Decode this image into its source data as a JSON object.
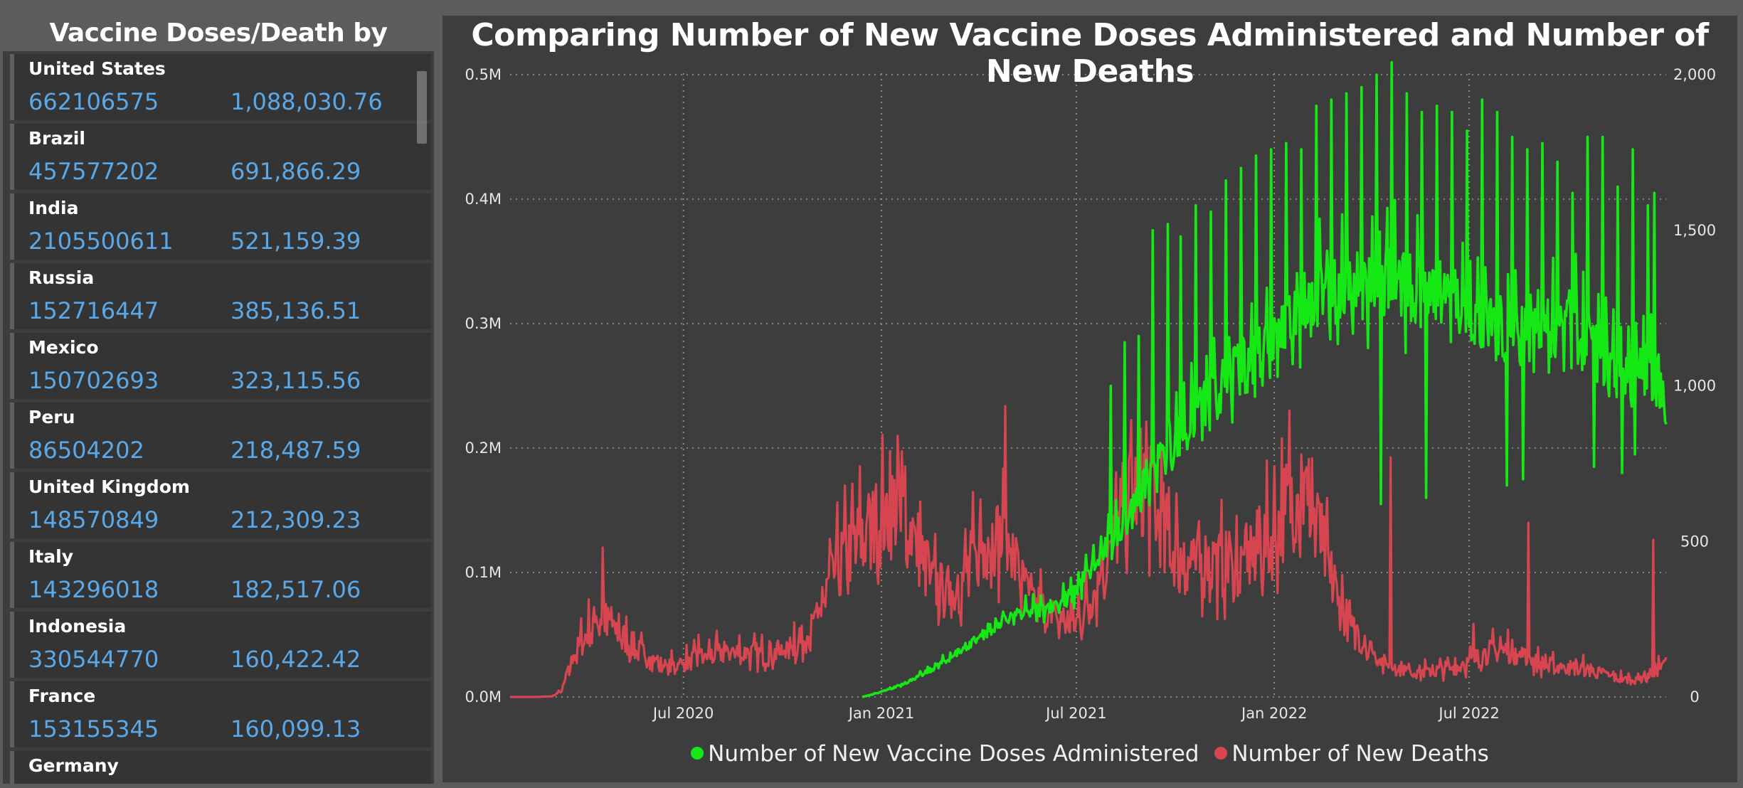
{
  "left_panel": {
    "title": "Vaccine Doses/Death by Country",
    "countries": [
      {
        "name": "United States",
        "doses": "662106575",
        "deaths": "1,088,030.76"
      },
      {
        "name": "Brazil",
        "doses": "457577202",
        "deaths": "691,866.29"
      },
      {
        "name": "India",
        "doses": "2105500611",
        "deaths": "521,159.39"
      },
      {
        "name": "Russia",
        "doses": "152716447",
        "deaths": "385,136.51"
      },
      {
        "name": "Mexico",
        "doses": "150702693",
        "deaths": "323,115.56"
      },
      {
        "name": "Peru",
        "doses": "86504202",
        "deaths": "218,487.59"
      },
      {
        "name": "United Kingdom",
        "doses": "148570849",
        "deaths": "212,309.23"
      },
      {
        "name": "Italy",
        "doses": "143296018",
        "deaths": "182,517.06"
      },
      {
        "name": "Indonesia",
        "doses": "330544770",
        "deaths": "160,422.42"
      },
      {
        "name": "France",
        "doses": "153155345",
        "deaths": "160,099.13"
      },
      {
        "name": "Germany",
        "doses": "",
        "deaths": ""
      }
    ]
  },
  "chart": {
    "title": "Comparing Number of New Vaccine Doses Administered and Number of New Deaths"
  },
  "chart_data": {
    "type": "line",
    "title": "Comparing Number of New Vaccine Doses Administered and Number of New Deaths",
    "x_range": [
      "2020-01-22",
      "2022-12-31"
    ],
    "x_ticks": [
      {
        "date": "2020-07-01",
        "label": "Jul 2020"
      },
      {
        "date": "2021-01-01",
        "label": "Jan 2021"
      },
      {
        "date": "2021-07-01",
        "label": "Jul 2021"
      },
      {
        "date": "2022-01-01",
        "label": "Jan 2022"
      },
      {
        "date": "2022-07-01",
        "label": "Jul 2022"
      }
    ],
    "y_left": {
      "min": 0,
      "max": 500000,
      "ticks": [
        0,
        100000,
        200000,
        300000,
        400000,
        500000
      ],
      "tick_labels": [
        "0.0M",
        "0.1M",
        "0.2M",
        "0.3M",
        "0.4M",
        "0.5M"
      ]
    },
    "y_right": {
      "min": 0,
      "max": 2000,
      "ticks": [
        0,
        500,
        1000,
        1500,
        2000
      ],
      "tick_labels": [
        "0",
        "500",
        "1,000",
        "1,500",
        "2,000"
      ]
    },
    "grid": true,
    "legend_position": "bottom-center",
    "series": [
      {
        "name": "Number of New Vaccine Doses Administered",
        "axis": "left",
        "color": "#16e816",
        "points": [
          [
            "2020-12-14",
            0
          ],
          [
            "2020-12-28",
            3000
          ],
          [
            "2021-01-11",
            7000
          ],
          [
            "2021-01-25",
            12000
          ],
          [
            "2021-02-08",
            18000
          ],
          [
            "2021-02-22",
            25000
          ],
          [
            "2021-03-08",
            33000
          ],
          [
            "2021-03-22",
            41000
          ],
          [
            "2021-04-05",
            50000
          ],
          [
            "2021-04-19",
            58000
          ],
          [
            "2021-05-03",
            64000
          ],
          [
            "2021-05-17",
            68000
          ],
          [
            "2021-05-31",
            71000
          ],
          [
            "2021-06-14",
            75000
          ],
          [
            "2021-06-28",
            82000
          ],
          [
            "2021-07-12",
            100000
          ],
          [
            "2021-07-26",
            115000
          ],
          [
            "2021-08-09",
            135000
          ],
          [
            "2021-08-23",
            150000
          ],
          [
            "2021-09-06",
            175000
          ],
          [
            "2021-09-20",
            195000
          ],
          [
            "2021-10-04",
            210000
          ],
          [
            "2021-10-18",
            225000
          ],
          [
            "2021-11-01",
            238000
          ],
          [
            "2021-11-15",
            250000
          ],
          [
            "2021-11-29",
            262000
          ],
          [
            "2021-12-13",
            275000
          ],
          [
            "2021-12-27",
            290000
          ],
          [
            "2022-01-10",
            300000
          ],
          [
            "2022-01-24",
            310000
          ],
          [
            "2022-02-07",
            318000
          ],
          [
            "2022-02-21",
            322000
          ],
          [
            "2022-03-07",
            328000
          ],
          [
            "2022-03-21",
            332000
          ],
          [
            "2022-04-04",
            335000
          ],
          [
            "2022-04-18",
            332000
          ],
          [
            "2022-05-02",
            330000
          ],
          [
            "2022-05-16",
            328000
          ],
          [
            "2022-05-30",
            322000
          ],
          [
            "2022-06-13",
            315000
          ],
          [
            "2022-06-27",
            308000
          ],
          [
            "2022-07-11",
            300000
          ],
          [
            "2022-07-25",
            295000
          ],
          [
            "2022-08-08",
            290000
          ],
          [
            "2022-08-22",
            288000
          ],
          [
            "2022-09-05",
            292000
          ],
          [
            "2022-09-19",
            298000
          ],
          [
            "2022-10-03",
            300000
          ],
          [
            "2022-10-17",
            285000
          ],
          [
            "2022-10-31",
            275000
          ],
          [
            "2022-11-14",
            265000
          ],
          [
            "2022-11-28",
            260000
          ],
          [
            "2022-12-12",
            262000
          ],
          [
            "2022-12-26",
            255000
          ],
          [
            "2022-12-31",
            205000
          ]
        ],
        "spikes": [
          [
            "2021-08-02",
            250000
          ],
          [
            "2021-08-15",
            285000
          ],
          [
            "2021-08-28",
            290000
          ],
          [
            "2021-09-10",
            375000
          ],
          [
            "2021-09-24",
            380000
          ],
          [
            "2021-10-06",
            370000
          ],
          [
            "2021-10-20",
            395000
          ],
          [
            "2021-11-03",
            390000
          ],
          [
            "2021-11-17",
            415000
          ],
          [
            "2021-12-01",
            425000
          ],
          [
            "2021-12-15",
            435000
          ],
          [
            "2021-12-29",
            440000
          ],
          [
            "2022-01-12",
            445000
          ],
          [
            "2022-01-26",
            440000
          ],
          [
            "2022-02-09",
            475000
          ],
          [
            "2022-02-23",
            480000
          ],
          [
            "2022-03-09",
            485000
          ],
          [
            "2022-03-23",
            490000
          ],
          [
            "2022-04-06",
            500000
          ],
          [
            "2022-04-20",
            510000
          ],
          [
            "2022-05-04",
            485000
          ],
          [
            "2022-05-18",
            470000
          ],
          [
            "2022-06-01",
            475000
          ],
          [
            "2022-06-15",
            470000
          ],
          [
            "2022-06-29",
            455000
          ],
          [
            "2022-07-13",
            480000
          ],
          [
            "2022-07-27",
            470000
          ],
          [
            "2022-08-10",
            450000
          ],
          [
            "2022-08-24",
            440000
          ],
          [
            "2022-09-07",
            445000
          ],
          [
            "2022-09-21",
            430000
          ],
          [
            "2022-10-05",
            405000
          ],
          [
            "2022-10-19",
            450000
          ],
          [
            "2022-11-02",
            450000
          ],
          [
            "2022-11-16",
            410000
          ],
          [
            "2022-11-30",
            440000
          ],
          [
            "2022-12-14",
            395000
          ],
          [
            "2022-12-20",
            405000
          ]
        ],
        "dips": [
          [
            "2022-04-10",
            155000
          ],
          [
            "2022-05-22",
            160000
          ],
          [
            "2022-08-05",
            170000
          ],
          [
            "2022-08-20",
            175000
          ],
          [
            "2022-10-25",
            185000
          ],
          [
            "2022-11-20",
            180000
          ],
          [
            "2022-12-02",
            195000
          ]
        ]
      },
      {
        "name": "Number of New Deaths",
        "axis": "right",
        "color": "#d64550",
        "points": [
          [
            "2020-01-22",
            0
          ],
          [
            "2020-02-15",
            0
          ],
          [
            "2020-03-01",
            2
          ],
          [
            "2020-03-10",
            20
          ],
          [
            "2020-03-20",
            120
          ],
          [
            "2020-04-01",
            200
          ],
          [
            "2020-04-15",
            260
          ],
          [
            "2020-05-01",
            210
          ],
          [
            "2020-05-15",
            160
          ],
          [
            "2020-06-01",
            120
          ],
          [
            "2020-06-15",
            95
          ],
          [
            "2020-07-01",
            110
          ],
          [
            "2020-07-15",
            125
          ],
          [
            "2020-08-01",
            140
          ],
          [
            "2020-08-15",
            145
          ],
          [
            "2020-09-01",
            140
          ],
          [
            "2020-09-15",
            135
          ],
          [
            "2020-10-01",
            145
          ],
          [
            "2020-10-15",
            165
          ],
          [
            "2020-11-01",
            230
          ],
          [
            "2020-11-15",
            380
          ],
          [
            "2020-12-01",
            470
          ],
          [
            "2020-12-15",
            520
          ],
          [
            "2021-01-01",
            570
          ],
          [
            "2021-01-15",
            620
          ],
          [
            "2021-02-01",
            510
          ],
          [
            "2021-02-15",
            380
          ],
          [
            "2021-03-01",
            330
          ],
          [
            "2021-03-15",
            360
          ],
          [
            "2021-04-01",
            470
          ],
          [
            "2021-04-15",
            520
          ],
          [
            "2021-05-01",
            480
          ],
          [
            "2021-05-15",
            330
          ],
          [
            "2021-06-01",
            280
          ],
          [
            "2021-06-15",
            240
          ],
          [
            "2021-07-01",
            240
          ],
          [
            "2021-07-15",
            320
          ],
          [
            "2021-08-01",
            470
          ],
          [
            "2021-08-15",
            620
          ],
          [
            "2021-09-01",
            700
          ],
          [
            "2021-09-15",
            580
          ],
          [
            "2021-10-01",
            470
          ],
          [
            "2021-10-15",
            410
          ],
          [
            "2021-11-01",
            440
          ],
          [
            "2021-11-15",
            420
          ],
          [
            "2021-12-01",
            420
          ],
          [
            "2021-12-15",
            470
          ],
          [
            "2022-01-01",
            520
          ],
          [
            "2022-01-15",
            640
          ],
          [
            "2022-02-01",
            650
          ],
          [
            "2022-02-15",
            480
          ],
          [
            "2022-03-01",
            310
          ],
          [
            "2022-03-15",
            210
          ],
          [
            "2022-04-01",
            150
          ],
          [
            "2022-04-15",
            100
          ],
          [
            "2022-05-01",
            90
          ],
          [
            "2022-05-15",
            80
          ],
          [
            "2022-06-01",
            85
          ],
          [
            "2022-06-15",
            95
          ],
          [
            "2022-07-01",
            110
          ],
          [
            "2022-07-15",
            140
          ],
          [
            "2022-08-01",
            155
          ],
          [
            "2022-08-15",
            140
          ],
          [
            "2022-09-01",
            110
          ],
          [
            "2022-09-15",
            100
          ],
          [
            "2022-10-01",
            95
          ],
          [
            "2022-10-15",
            90
          ],
          [
            "2022-11-01",
            75
          ],
          [
            "2022-11-15",
            60
          ],
          [
            "2022-12-01",
            55
          ],
          [
            "2022-12-15",
            70
          ],
          [
            "2022-12-31",
            110
          ]
        ],
        "spikes": [
          [
            "2020-04-17",
            480
          ],
          [
            "2020-07-15",
            200
          ],
          [
            "2020-10-12",
            240
          ],
          [
            "2021-01-20",
            790
          ],
          [
            "2021-04-26",
            935
          ],
          [
            "2021-09-08",
            805
          ],
          [
            "2022-01-26",
            780
          ],
          [
            "2022-04-19",
            770
          ],
          [
            "2022-07-05",
            235
          ],
          [
            "2022-08-25",
            560
          ],
          [
            "2022-12-19",
            505
          ]
        ]
      }
    ]
  }
}
